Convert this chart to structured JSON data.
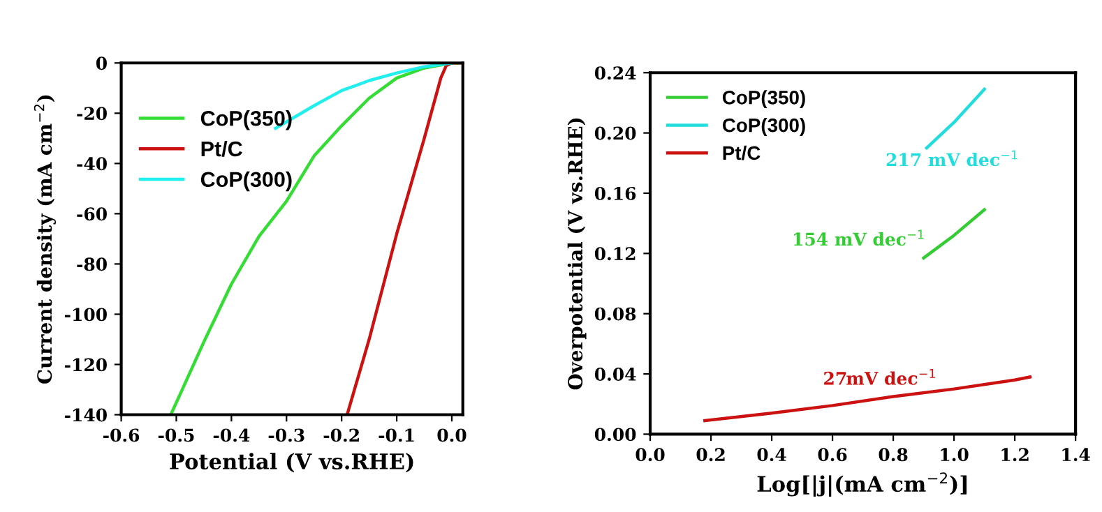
{
  "chart_data": [
    {
      "type": "line",
      "xlabel": "Potential (V vs.RHE)",
      "ylabel": "Current density (mA cm$^{−2}$)",
      "xlim": [
        -0.6,
        0.02
      ],
      "ylim": [
        -140,
        0
      ],
      "xticks": [
        {
          "value": -0.6,
          "label": "-0.6"
        },
        {
          "value": -0.5,
          "label": "-0.5"
        },
        {
          "value": -0.4,
          "label": "-0.4"
        },
        {
          "value": -0.3,
          "label": "-0.3"
        },
        {
          "value": -0.2,
          "label": "-0.2"
        },
        {
          "value": -0.1,
          "label": "-0.1"
        },
        {
          "value": 0.0,
          "label": "0.0"
        }
      ],
      "yticks": [
        -140,
        -120,
        -100,
        -80,
        -60,
        -40,
        -20,
        0
      ],
      "legend": "top left",
      "grid": false,
      "series": [
        {
          "name": "CoP(350)",
          "color": "#33dd33",
          "x": [
            -0.51,
            -0.45,
            -0.4,
            -0.35,
            -0.3,
            -0.25,
            -0.2,
            -0.15,
            -0.1,
            -0.05,
            0.0,
            0.02
          ],
          "values": [
            -140,
            -111,
            -88,
            -69,
            -55,
            -37,
            -25,
            -14,
            -6,
            -2,
            0,
            0
          ]
        },
        {
          "name": "Pt/C",
          "color": "#cc1111",
          "x": [
            -0.19,
            -0.15,
            -0.1,
            -0.05,
            -0.02,
            -0.01,
            0.0,
            0.02
          ],
          "values": [
            -140,
            -110,
            -68,
            -30,
            -6,
            -1,
            0,
            0
          ]
        },
        {
          "name": "CoP(300)",
          "color": "#22eeee",
          "x": [
            -0.32,
            -0.25,
            -0.2,
            -0.15,
            -0.1,
            -0.05,
            0.0
          ],
          "values": [
            -26,
            -17,
            -11,
            -7,
            -4,
            -1.5,
            0
          ]
        }
      ]
    },
    {
      "type": "line",
      "xlabel": "Log[|j|(mA cm$^{−2}$)]",
      "ylabel": "Overpotential (V vs.RHE)",
      "xlim": [
        0,
        1.4
      ],
      "ylim": [
        0,
        0.24
      ],
      "xticks": [
        {
          "value": 0,
          "label": "0.0"
        },
        0.2,
        0.4,
        0.6,
        0.8,
        {
          "value": 1.0,
          "label": "1.0"
        },
        1.2,
        1.4
      ],
      "yticks": [
        {
          "value": 0,
          "label": "0.00"
        },
        0.04,
        0.08,
        0.12,
        0.16,
        {
          "value": 0.2,
          "label": "0.20"
        },
        0.24
      ],
      "legend": "top left",
      "grid": false,
      "series": [
        {
          "name": "CoP(350)",
          "color": "#33cc33",
          "x": [
            0.9,
            1.0,
            1.1
          ],
          "values": [
            0.117,
            0.132,
            0.149
          ]
        },
        {
          "name": "CoP(300)",
          "color": "#22dddd",
          "x": [
            0.91,
            1.0,
            1.1
          ],
          "values": [
            0.19,
            0.207,
            0.229
          ]
        },
        {
          "name": "Pt/C",
          "color": "#cc1111",
          "x": [
            0.18,
            0.4,
            0.6,
            0.8,
            1.0,
            1.2,
            1.25
          ],
          "values": [
            0.009,
            0.014,
            0.019,
            0.025,
            0.03,
            0.036,
            0.038
          ]
        }
      ],
      "annotations": [
        "154 mV dec$^{−1}$",
        "217 mV dec$^{−1}$",
        "27mV dec$^{−1}$"
      ]
    }
  ]
}
